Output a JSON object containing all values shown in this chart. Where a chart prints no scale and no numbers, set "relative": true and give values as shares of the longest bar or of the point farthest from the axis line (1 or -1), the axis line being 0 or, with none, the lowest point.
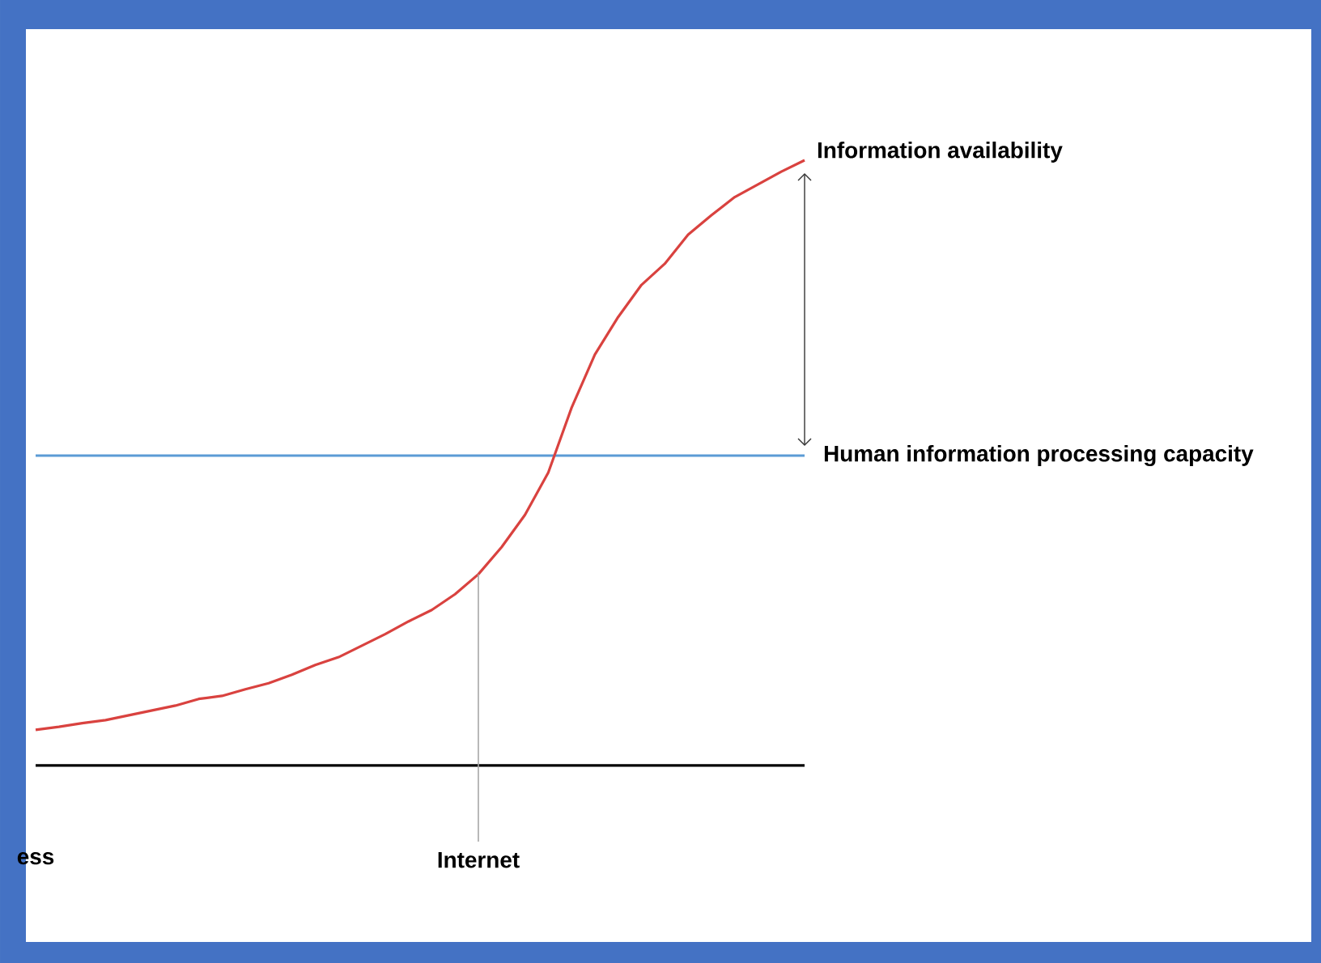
{
  "chart_data": {
    "type": "line",
    "relative": true,
    "categories": [
      "ess",
      null,
      null,
      null,
      null,
      null,
      null,
      null,
      null,
      null,
      null,
      null,
      null,
      null,
      null,
      null,
      null,
      null,
      null,
      "Internet",
      null,
      null,
      null,
      null,
      null,
      null,
      null,
      null,
      null,
      null,
      null,
      null,
      null,
      null
    ],
    "series": [
      {
        "name": "Information availability",
        "color": "#d9423f",
        "values": [
          0.059,
          0.064,
          0.07,
          0.075,
          0.083,
          0.091,
          0.099,
          0.11,
          0.115,
          0.126,
          0.136,
          0.15,
          0.166,
          0.179,
          0.198,
          0.217,
          0.238,
          0.257,
          0.283,
          0.316,
          0.361,
          0.414,
          0.484,
          0.591,
          0.679,
          0.741,
          0.794,
          0.829,
          0.877,
          0.909,
          0.939,
          0.96,
          0.981,
          1.0
        ]
      }
    ],
    "ref_lines": [
      {
        "axis": "y",
        "value": 0.512,
        "label": "Human information processing capacity",
        "color": "#5b9bd5"
      }
    ]
  }
}
